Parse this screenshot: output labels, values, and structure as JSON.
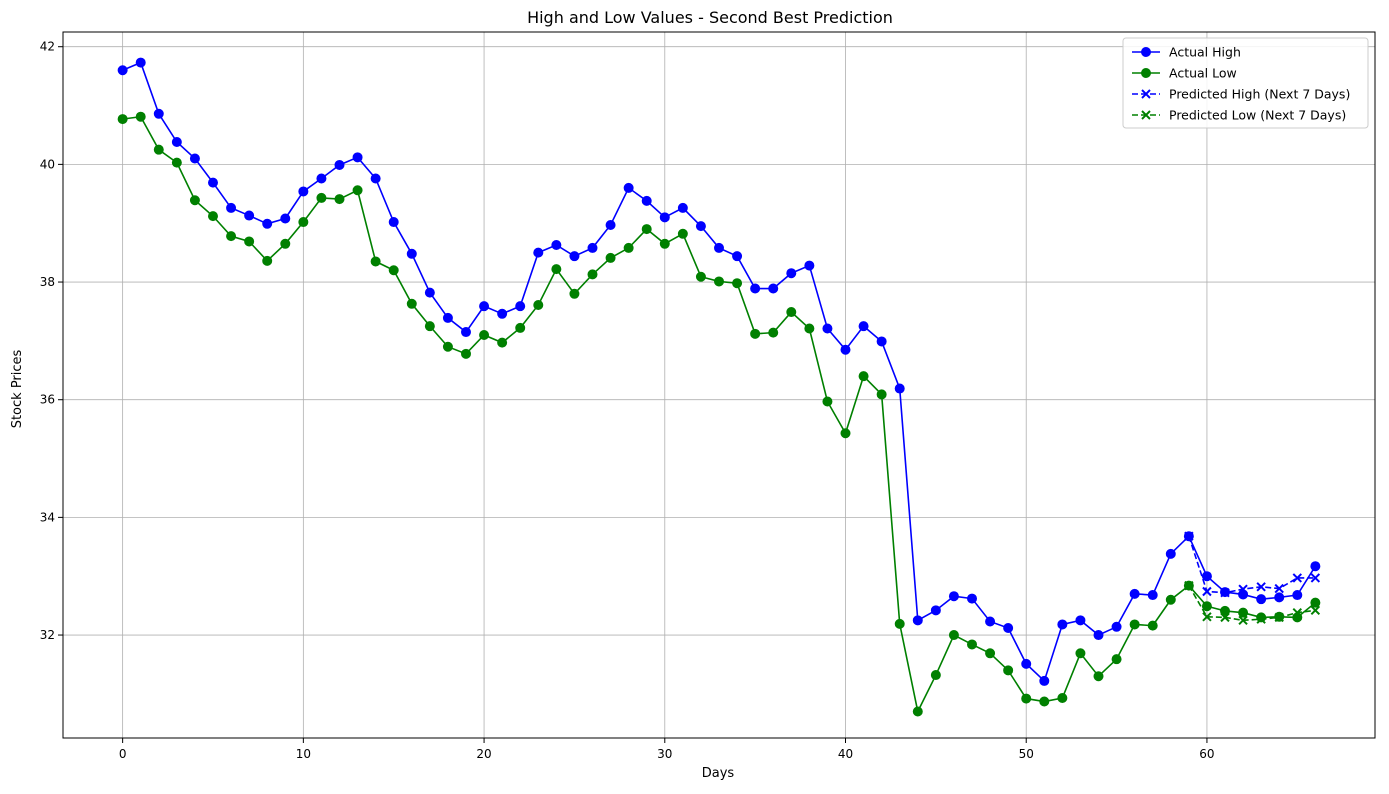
{
  "chart_data": {
    "type": "line",
    "title": "High and Low Values - Second Best Prediction",
    "xlabel": "Days",
    "ylabel": "Stock Prices",
    "xlim": [
      -3.3,
      69.3
    ],
    "ylim": [
      30.25,
      42.25
    ],
    "x_ticks": [
      0,
      10,
      20,
      30,
      40,
      50,
      60
    ],
    "y_ticks": [
      32,
      34,
      36,
      38,
      40,
      42
    ],
    "grid": true,
    "legend_position": "top-right",
    "series": [
      {
        "name": "Actual High",
        "color": "#0000ff",
        "marker": "circle",
        "linestyle": "solid",
        "x_start": 0,
        "values": [
          41.6,
          41.73,
          40.86,
          40.38,
          40.1,
          39.69,
          39.26,
          39.13,
          38.99,
          39.08,
          39.54,
          39.76,
          39.99,
          40.12,
          39.76,
          39.02,
          38.48,
          37.82,
          37.39,
          37.15,
          37.59,
          37.46,
          37.59,
          38.5,
          38.63,
          38.44,
          38.58,
          38.97,
          39.6,
          39.38,
          39.1,
          39.26,
          38.95,
          38.58,
          38.44,
          37.89,
          37.89,
          38.15,
          38.28,
          37.21,
          36.85,
          37.25,
          36.99,
          36.19,
          32.25,
          32.42,
          32.66,
          32.62,
          32.23,
          32.12,
          31.51,
          31.22,
          32.18,
          32.25,
          32.0,
          32.14,
          32.7,
          32.68,
          33.38,
          33.68,
          33.0,
          32.73,
          32.69,
          32.61,
          32.64,
          32.68,
          33.17
        ]
      },
      {
        "name": "Actual Low",
        "color": "#008000",
        "marker": "circle",
        "linestyle": "solid",
        "x_start": 0,
        "values": [
          40.77,
          40.81,
          40.25,
          40.03,
          39.39,
          39.12,
          38.78,
          38.69,
          38.36,
          38.65,
          39.02,
          39.43,
          39.41,
          39.56,
          38.35,
          38.2,
          37.63,
          37.25,
          36.9,
          36.78,
          37.1,
          36.97,
          37.22,
          37.61,
          38.22,
          37.8,
          38.13,
          38.41,
          38.58,
          38.9,
          38.65,
          38.82,
          38.09,
          38.01,
          37.98,
          37.12,
          37.14,
          37.49,
          37.21,
          35.97,
          35.43,
          36.4,
          36.09,
          32.19,
          30.7,
          31.32,
          32.0,
          31.84,
          31.69,
          31.4,
          30.92,
          30.87,
          30.93,
          31.69,
          31.3,
          31.59,
          32.18,
          32.16,
          32.6,
          32.84,
          32.49,
          32.41,
          32.38,
          32.3,
          32.31,
          32.3,
          32.55
        ]
      },
      {
        "name": "Predicted High (Next 7 Days)",
        "color": "#0000ff",
        "marker": "x",
        "linestyle": "dashed",
        "x_start": 59,
        "values": [
          33.68,
          32.74,
          32.72,
          32.78,
          32.82,
          32.79,
          32.97,
          32.97
        ]
      },
      {
        "name": "Predicted Low (Next 7 Days)",
        "color": "#008000",
        "marker": "x",
        "linestyle": "dashed",
        "x_start": 59,
        "values": [
          32.84,
          32.31,
          32.3,
          32.25,
          32.27,
          32.3,
          32.38,
          32.42
        ]
      }
    ]
  }
}
